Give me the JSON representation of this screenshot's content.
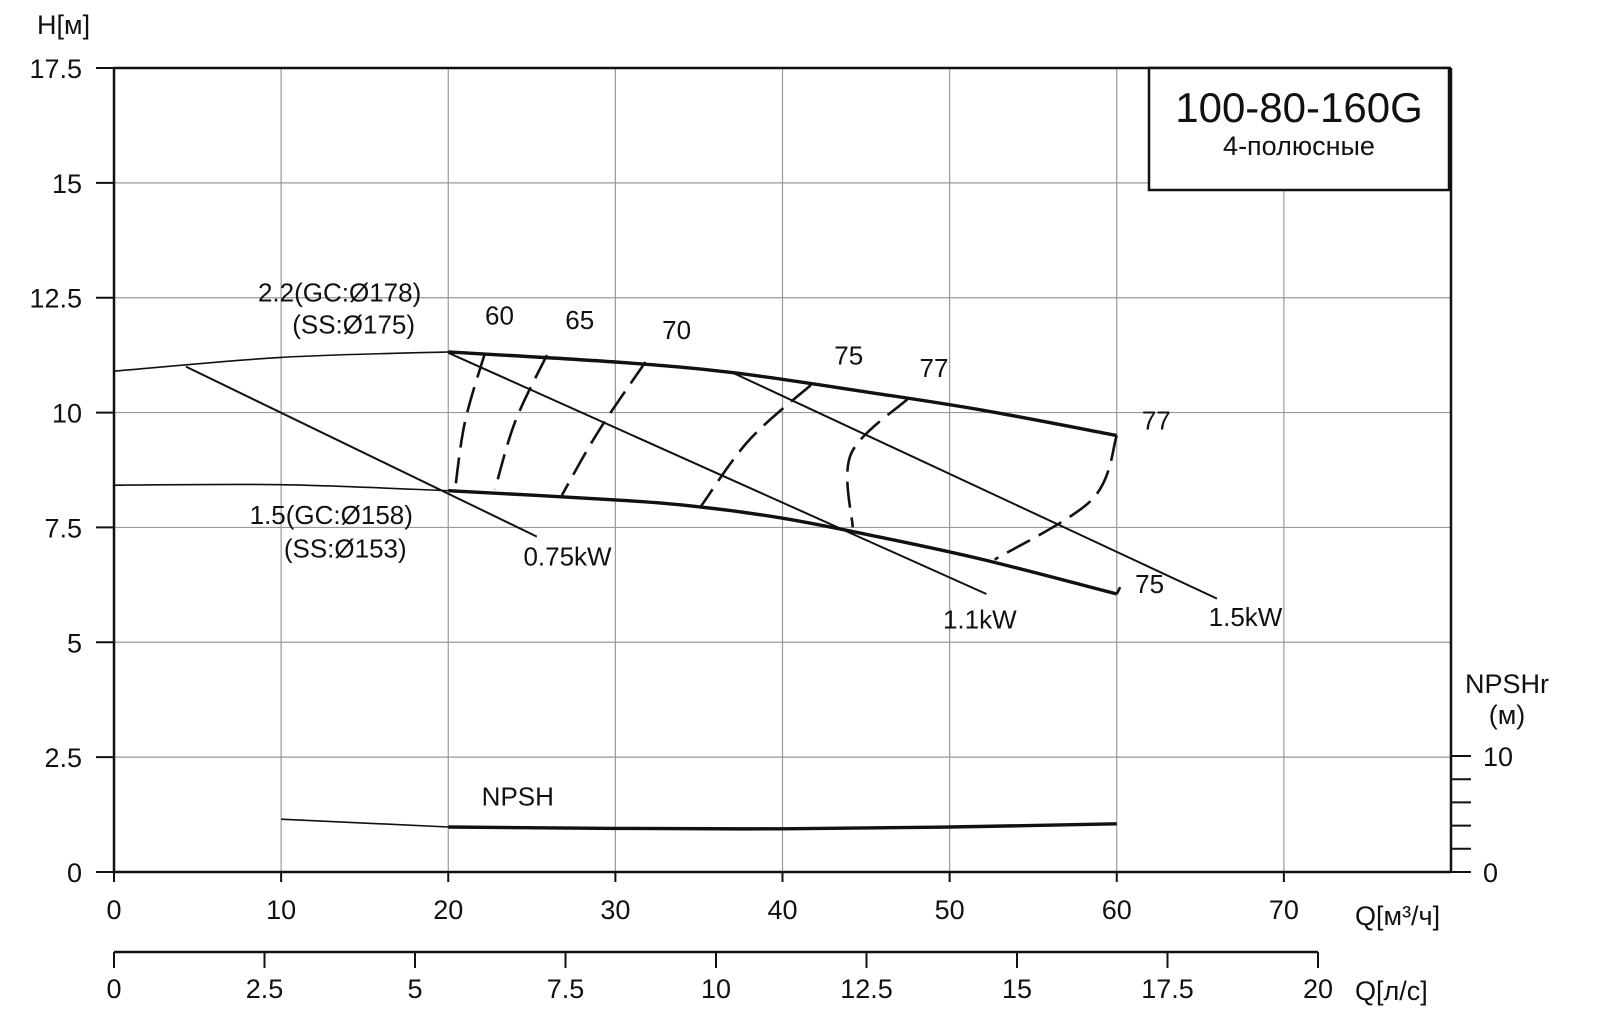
{
  "chart_data": {
    "type": "line",
    "title": "100-80-160G",
    "subtitle": "4-полюсные",
    "ylabel": "H[м]",
    "xlabel": "Q[м³/ч]",
    "x2label": "Q[л/с]",
    "y2label_line1": "NPSHr",
    "y2label_line2": "(м)",
    "xlim": [
      0,
      80
    ],
    "ylim": [
      0,
      17.5
    ],
    "x_ticks": [
      "0",
      "10",
      "20",
      "30",
      "40",
      "50",
      "60",
      "70"
    ],
    "y_ticks": [
      "0",
      "2.5",
      "5",
      "7.5",
      "10",
      "12.5",
      "15",
      "17.5"
    ],
    "x2_ticks": [
      "0",
      "2.5",
      "5",
      "7.5",
      "10",
      "12.5",
      "15",
      "17.5",
      "20"
    ],
    "y2_ticks": [
      "0",
      "10"
    ],
    "y2_range": [
      0,
      10
    ],
    "grid": true,
    "series": [
      {
        "name": "2.2(GC:Ø178)",
        "name_line2": "(SS:Ø175)",
        "style": "curve",
        "x": [
          0,
          10,
          20,
          30,
          37,
          45,
          52,
          60
        ],
        "y": [
          10.9,
          11.2,
          11.32,
          11.1,
          10.87,
          10.45,
          10.05,
          9.5
        ]
      },
      {
        "name": "1.5(GC:Ø158)",
        "name_line2": "(SS:Ø153)",
        "style": "curve",
        "x": [
          0,
          10,
          20,
          30,
          35,
          40,
          45,
          52,
          60
        ],
        "y": [
          8.42,
          8.43,
          8.3,
          8.1,
          7.95,
          7.7,
          7.35,
          6.8,
          6.05
        ]
      },
      {
        "name": "NPSH",
        "style": "curve",
        "x": [
          10,
          20,
          30,
          40,
          50,
          60
        ],
        "y": [
          1.15,
          0.98,
          0.95,
          0.94,
          0.98,
          1.05
        ]
      },
      {
        "name": "0.75kW",
        "style": "power",
        "x": [
          4.3,
          25.3
        ],
        "y": [
          11.0,
          7.3
        ]
      },
      {
        "name": "1.1kW",
        "style": "power",
        "x": [
          20,
          52.2
        ],
        "y": [
          11.3,
          6.05
        ]
      },
      {
        "name": "1.5kW",
        "style": "power",
        "x": [
          37,
          66
        ],
        "y": [
          10.87,
          5.95
        ]
      },
      {
        "name": "60",
        "style": "efficiency",
        "x": [
          22.2,
          21,
          20.4
        ],
        "y": [
          11.3,
          9.8,
          8.3
        ]
      },
      {
        "name": "65",
        "style": "efficiency",
        "x": [
          25.9,
          24,
          22.8
        ],
        "y": [
          11.25,
          9.8,
          8.33
        ]
      },
      {
        "name": "70",
        "style": "efficiency",
        "x": [
          31.8,
          29,
          26.8
        ],
        "y": [
          11.1,
          9.6,
          8.2
        ]
      },
      {
        "name": "75",
        "style": "efficiency",
        "x": [
          41.7,
          38,
          35.1
        ],
        "y": [
          10.6,
          9.4,
          7.95
        ]
      },
      {
        "name": "77",
        "style": "efficiency",
        "x": [
          47.5,
          44.1,
          44.2
        ],
        "y": [
          10.3,
          9.1,
          7.5
        ]
      },
      {
        "name": "77",
        "style": "efficiency",
        "x": [
          60,
          58.5,
          52.7
        ],
        "y": [
          9.5,
          8.1,
          6.8
        ]
      },
      {
        "name": "75",
        "style": "efficiency",
        "x": [
          60,
          60.2
        ],
        "y": [
          6.05,
          6.2
        ]
      }
    ],
    "annotations": [
      {
        "text": "60",
        "x": 22.2,
        "y": 11.92
      },
      {
        "text": "65",
        "x": 27,
        "y": 11.82
      },
      {
        "text": "70",
        "x": 32.8,
        "y": 11.6
      },
      {
        "text": "75",
        "x": 43.1,
        "y": 11.05
      },
      {
        "text": "77",
        "x": 48.2,
        "y": 10.77
      },
      {
        "text": "77",
        "x": 61.5,
        "y": 9.63
      },
      {
        "text": "75",
        "x": 61.1,
        "y": 6.07
      },
      {
        "text": "NPSH",
        "x": 22,
        "y": 1.45
      },
      {
        "text": "0.75kW",
        "x": 24.5,
        "y": 6.67
      },
      {
        "text": "1.1kW",
        "x": 49.6,
        "y": 5.3
      },
      {
        "text": "1.5kW",
        "x": 65.5,
        "y": 5.35
      }
    ],
    "series_labels": [
      {
        "line1": "2.2(GC:Ø178)",
        "line2": "(SS:Ø175)",
        "x": 13.5,
        "y1": 12.42,
        "y2": 11.72
      },
      {
        "line1": "1.5(GC:Ø158)",
        "line2": "(SS:Ø153)",
        "x": 13,
        "y1": 7.57,
        "y2": 6.85
      }
    ]
  }
}
